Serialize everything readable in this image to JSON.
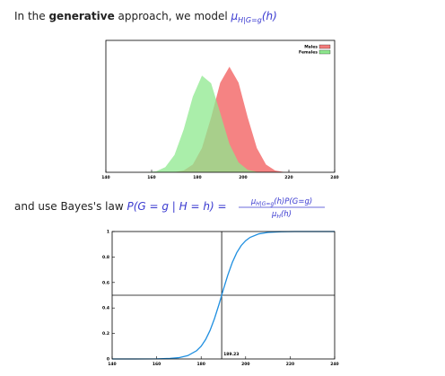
{
  "intro": {
    "before": "In the ",
    "bold": "generative",
    "after": " approach, we model ",
    "mu": "μ",
    "sub": "H|G=g",
    "arg": "(h)"
  },
  "bayes": {
    "before": "and use Bayes's law ",
    "lhs": "P(G = g | H = h) =",
    "numerator": {
      "mu": "μ",
      "sub": "H|G=g",
      "rest": "(h)P(G=g)"
    },
    "denominator": {
      "mu": "μ",
      "sub": "H",
      "rest": "(h)"
    }
  },
  "chart_data": [
    {
      "type": "area",
      "x": [
        150,
        154,
        158,
        162,
        166,
        170,
        174,
        178,
        182,
        186,
        190,
        194,
        198,
        202,
        206,
        210,
        214,
        218,
        222,
        226,
        230
      ],
      "series": [
        {
          "name": "Males",
          "color": "#f47c7c",
          "values": [
            0,
            0,
            0,
            0,
            0,
            0.002,
            0.014,
            0.059,
            0.184,
            0.416,
            0.679,
            0.8,
            0.679,
            0.416,
            0.184,
            0.059,
            0.014,
            0.002,
            0,
            0,
            0
          ]
        },
        {
          "name": "Females",
          "color": "#8ee88e",
          "values": [
            0,
            0,
            0.001,
            0.008,
            0.039,
            0.132,
            0.324,
            0.573,
            0.733,
            0.675,
            0.449,
            0.215,
            0.075,
            0.019,
            0.003,
            0,
            0,
            0,
            0,
            0,
            0
          ]
        }
      ],
      "xlim": [
        140,
        240
      ],
      "xticks": [
        140,
        160,
        180,
        200,
        220,
        240
      ],
      "ylim": [
        0,
        1
      ],
      "legend": "upper right"
    },
    {
      "type": "line",
      "x": [
        140,
        150,
        160,
        166,
        170,
        174,
        178,
        180,
        182,
        184,
        186,
        188,
        190,
        192,
        194,
        196,
        198,
        200,
        202,
        206,
        210,
        216,
        222,
        230,
        240
      ],
      "series": [
        {
          "color": "#1f8fe0",
          "values": [
            0,
            0,
            0.001,
            0.004,
            0.01,
            0.026,
            0.065,
            0.1,
            0.152,
            0.224,
            0.317,
            0.427,
            0.546,
            0.659,
            0.757,
            0.834,
            0.89,
            0.928,
            0.954,
            0.982,
            0.993,
            0.998,
            1,
            1,
            1
          ]
        }
      ],
      "vline": 189.23,
      "hline": 0.5,
      "xlim": [
        140,
        240
      ],
      "xticks": [
        140,
        160,
        180,
        200,
        220,
        240
      ],
      "ylim": [
        0,
        1
      ],
      "yticks": [
        0,
        0.2,
        0.4,
        0.6,
        0.8,
        1
      ]
    }
  ]
}
